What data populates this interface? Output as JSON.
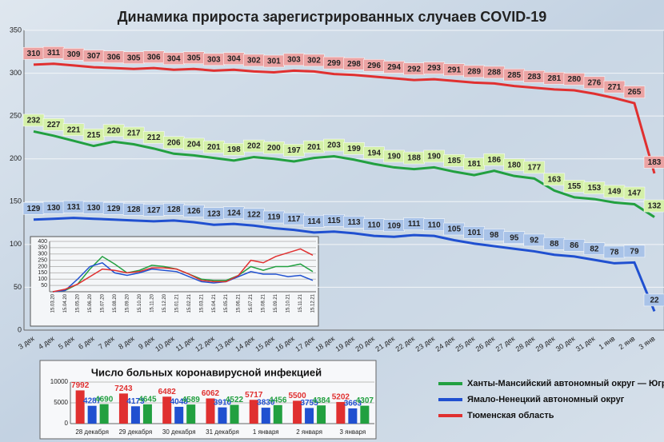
{
  "chart_data": [
    {
      "type": "line",
      "title": "Динамика прироста зарегистрированных случаев COVID-19",
      "categories": [
        "3 дек",
        "4 дек",
        "5 дек",
        "6 дек",
        "7 дек",
        "8 дек",
        "9 дек",
        "10 дек",
        "11 дек",
        "12 дек",
        "13 дек",
        "14 дек",
        "15 дек",
        "16 дек",
        "17 дек",
        "18 дек",
        "19 дек",
        "20 дек",
        "21 дек",
        "22 дек",
        "23 дек",
        "24 дек",
        "25 дек",
        "26 дек",
        "27 дек",
        "28 дек",
        "29 дек",
        "30 дек",
        "31 дек",
        "1 янв",
        "2 янв",
        "3 янв"
      ],
      "series": [
        {
          "name": "Ханты-Мансийский автономный округ — Югра",
          "color": "#22a040",
          "label_color": "#d4f0a8",
          "values": [
            232,
            227,
            221,
            215,
            220,
            217,
            212,
            206,
            204,
            201,
            198,
            202,
            200,
            197,
            201,
            203,
            199,
            194,
            190,
            188,
            190,
            185,
            181,
            186,
            180,
            177,
            163,
            155,
            153,
            149,
            147,
            132
          ]
        },
        {
          "name": "Ямало-Ненецкий автономный округ",
          "color": "#2050d0",
          "label_color": "#a9c3e8",
          "values": [
            129,
            130,
            131,
            130,
            129,
            128,
            127,
            128,
            126,
            123,
            124,
            122,
            119,
            117,
            114,
            115,
            113,
            110,
            109,
            111,
            110,
            105,
            101,
            98,
            95,
            92,
            88,
            86,
            82,
            78,
            79,
            22
          ]
        },
        {
          "name": "Тюменская область",
          "color": "#e03030",
          "label_color": "#eba3a3",
          "values": [
            310,
            311,
            309,
            307,
            306,
            305,
            306,
            304,
            305,
            303,
            304,
            302,
            301,
            303,
            302,
            299,
            298,
            296,
            294,
            292,
            293,
            291,
            289,
            288,
            285,
            283,
            281,
            280,
            276,
            271,
            265,
            183
          ]
        }
      ],
      "ylim": [
        0,
        350
      ],
      "yticks": [
        0,
        50,
        100,
        150,
        200,
        250,
        300,
        350
      ],
      "grid": true,
      "legend": "lower right",
      "data_labels": true
    },
    {
      "type": "line",
      "categories": [
        "15.03.20",
        "15.04.20",
        "15.05.20",
        "15.06.20",
        "15.07.20",
        "15.08.20",
        "15.09.20",
        "15.10.20",
        "15.11.20",
        "15.12.20",
        "15.01.21",
        "15.02.21",
        "15.03.21",
        "15.04.21",
        "15.05.21",
        "15.06.21",
        "15.07.21",
        "15.08.21",
        "15.09.21",
        "15.10.21",
        "15.11.21",
        "15.12.21"
      ],
      "series": [
        {
          "color": "#22a040",
          "values": [
            0,
            10,
            60,
            180,
            280,
            220,
            150,
            170,
            210,
            200,
            180,
            140,
            100,
            90,
            90,
            130,
            200,
            170,
            200,
            200,
            220,
            160
          ]
        },
        {
          "color": "#2050d0",
          "values": [
            0,
            10,
            100,
            200,
            230,
            150,
            130,
            150,
            180,
            170,
            160,
            120,
            80,
            70,
            80,
            120,
            160,
            140,
            140,
            120,
            130,
            90
          ]
        },
        {
          "color": "#e03030",
          "values": [
            0,
            20,
            60,
            120,
            180,
            170,
            150,
            160,
            190,
            190,
            180,
            140,
            90,
            80,
            80,
            130,
            250,
            230,
            280,
            310,
            340,
            290
          ]
        }
      ],
      "ylim": [
        0,
        400
      ],
      "yticks": [
        50,
        100,
        150,
        200,
        250,
        300,
        350,
        400
      ],
      "grid": true
    },
    {
      "type": "bar",
      "title": "Число больных коронавирусной  инфекцией",
      "categories": [
        "28 декабря",
        "29 декабря",
        "30 декабря",
        "31 декабря",
        "1 января",
        "2 января",
        "3 января"
      ],
      "series": [
        {
          "color": "#e03030",
          "values": [
            7992,
            7243,
            6482,
            6062,
            5717,
            5500,
            5202
          ]
        },
        {
          "color": "#2050d0",
          "values": [
            4287,
            4173,
            4048,
            3910,
            3830,
            3755,
            3663
          ]
        },
        {
          "color": "#22a040",
          "values": [
            4690,
            4645,
            4589,
            4522,
            4456,
            4384,
            4307
          ]
        }
      ],
      "ylim": [
        0,
        10000
      ],
      "yticks": [
        0,
        5000,
        10000
      ],
      "grid": true,
      "data_labels": true
    }
  ]
}
